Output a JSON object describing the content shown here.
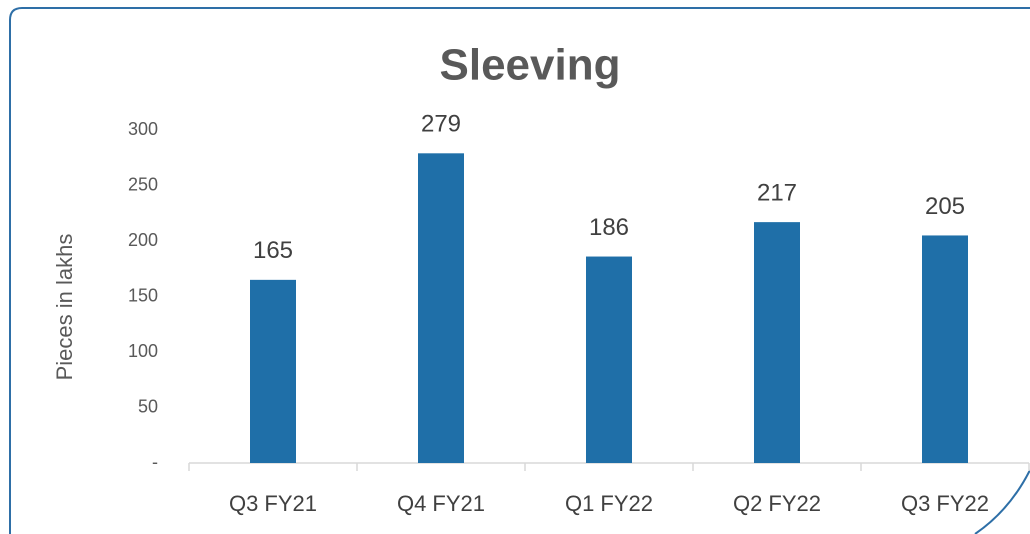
{
  "chart_data": {
    "type": "bar",
    "title": "Sleeving",
    "y_label": "Pieces in lakhs",
    "categories": [
      "Q3 FY21",
      "Q4 FY21",
      "Q1 FY22",
      "Q2 FY22",
      "Q3 FY22"
    ],
    "values": [
      165,
      279,
      186,
      217,
      205
    ],
    "color": "#1f6fa8",
    "ylim": [
      0,
      300
    ],
    "yticks": [
      {
        "value": 0,
        "label": "-"
      },
      50,
      100,
      150,
      200,
      250,
      300
    ],
    "grid": false
  }
}
